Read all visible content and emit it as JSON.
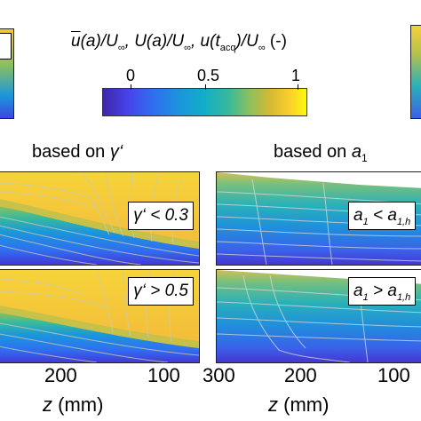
{
  "colorbar": {
    "title_parts": {
      "p1": "u",
      "p2": "(a)/U",
      "p3": "∞",
      "p4": ", U(a)/U",
      "p5": "∞",
      "p6": ", u(t",
      "p7": "acq",
      "p8": ")/U",
      "p9": "∞",
      "p10": " (-)"
    },
    "ticks": [
      "0",
      "0.5",
      "1"
    ],
    "colors": [
      "#3e26a8",
      "#2f6ff0",
      "#13aec6",
      "#8cbf5e",
      "#fbcf2c",
      "#f9fb0e"
    ]
  },
  "columns": {
    "left_title_prefix": "based on ",
    "left_title_symbol": "γ‘",
    "right_title_prefix": "based on ",
    "right_title_symbol": "a",
    "right_title_sub": "1"
  },
  "panels": {
    "top_left_condition": "γ‘ < 0.3",
    "bottom_left_condition": "γ‘ > 0.5",
    "top_right_condition_var": "a",
    "top_right_condition_sub": "1",
    "top_right_condition_rest": " < a",
    "top_right_condition_sub2": "1,h",
    "bottom_right_condition_var": "a",
    "bottom_right_condition_sub": "1",
    "bottom_right_condition_rest": " > a",
    "bottom_right_condition_sub2": "1,h"
  },
  "axes": {
    "left_ticks": [
      "200",
      "100"
    ],
    "right_ticks": [
      "300",
      "200",
      "100"
    ],
    "xlabel_var": "z",
    "xlabel_unit": " (mm)"
  }
}
